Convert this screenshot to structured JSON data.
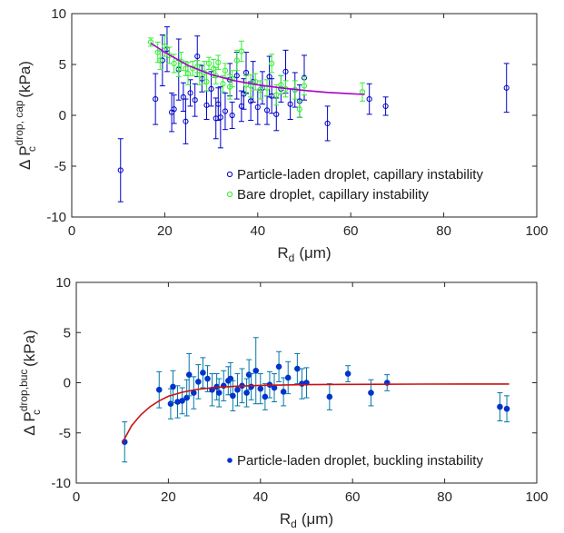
{
  "chart_data": [
    {
      "type": "scatter",
      "ylabel_main": "Δ P",
      "ylabel_sub": "c",
      "ylabel_sup": "drop, cap",
      "ylabel_unit": "(kPa)",
      "xlabel_main": "R",
      "xlabel_sub": "d",
      "xlabel_unit": "(μm)",
      "xlim": [
        0,
        100
      ],
      "ylim": [
        -10,
        10
      ],
      "xticks": [
        "0",
        "20",
        "40",
        "60",
        "80",
        "100"
      ],
      "yticks": [
        "10",
        "5",
        "0",
        "-5",
        "-10"
      ],
      "grid": false,
      "legend_position": "lower-right",
      "series": [
        {
          "name": "Particle-laden droplet, capillary instability",
          "marker": "open-circle",
          "color": "#0000cc",
          "points": [
            [
              10.5,
              -5.4,
              3.1
            ],
            [
              18,
              1.6,
              2.5
            ],
            [
              19.5,
              5.4,
              2.5
            ],
            [
              20.5,
              6.5,
              2.2
            ],
            [
              21.5,
              0.3,
              1.9
            ],
            [
              22,
              0.6,
              1.4
            ],
            [
              23,
              4.5,
              3.0
            ],
            [
              24,
              1.8,
              1.4
            ],
            [
              24.5,
              -0.6,
              2.2
            ],
            [
              25.5,
              2.2,
              1.3
            ],
            [
              26.5,
              1.5,
              1.6
            ],
            [
              27,
              5.8,
              2.0
            ],
            [
              28,
              3.6,
              1.3
            ],
            [
              29,
              1.0,
              1.4
            ],
            [
              30,
              2.6,
              1.7
            ],
            [
              31,
              -0.3,
              2.0
            ],
            [
              31.5,
              1.1,
              1.6
            ],
            [
              32,
              -0.2,
              3.0
            ],
            [
              33,
              0.4,
              1.8
            ],
            [
              34,
              3.5,
              1.6
            ],
            [
              34.5,
              0.0,
              1.3
            ],
            [
              35.5,
              3.9,
              2.3
            ],
            [
              36.5,
              0.9,
              1.5
            ],
            [
              37,
              2.1,
              1.5
            ],
            [
              37.5,
              4.2,
              2.0
            ],
            [
              38.5,
              1.4,
              1.9
            ],
            [
              39,
              3.3,
              2.0
            ],
            [
              40,
              0.8,
              1.7
            ],
            [
              41,
              2.7,
              1.6
            ],
            [
              42,
              0.5,
              1.4
            ],
            [
              42.5,
              3.8,
              2.0
            ],
            [
              43,
              1.9,
              1.7
            ],
            [
              44,
              0.1,
              1.6
            ],
            [
              45,
              2.6,
              1.3
            ],
            [
              46,
              4.3,
              2.1
            ],
            [
              47,
              1.1,
              1.5
            ],
            [
              48,
              2.5,
              1.7
            ],
            [
              49,
              1.4,
              1.6
            ],
            [
              50,
              3.7,
              2.2
            ],
            [
              55,
              -0.8,
              1.7
            ],
            [
              64,
              1.6,
              1.5
            ],
            [
              67.5,
              0.9,
              0.9
            ],
            [
              93.5,
              2.7,
              2.4
            ]
          ]
        },
        {
          "name": "Bare droplet, capillary instability",
          "marker": "open-circle",
          "color": "#33ee33",
          "points": [
            [
              17,
              7.2,
              0.4
            ],
            [
              18.5,
              6.2,
              1.0
            ],
            [
              19,
              5.4,
              0.9
            ],
            [
              20,
              6.8,
              1.0
            ],
            [
              21,
              5.9,
              0.8
            ],
            [
              22,
              5.1,
              0.9
            ],
            [
              23,
              4.6,
              0.8
            ],
            [
              23.5,
              5.3,
              0.9
            ],
            [
              24.5,
              4.6,
              0.7
            ],
            [
              25,
              4.1,
              1.1
            ],
            [
              26,
              4.6,
              0.7
            ],
            [
              27,
              4.8,
              0.6
            ],
            [
              27.5,
              4.0,
              1.0
            ],
            [
              28.5,
              4.2,
              1.1
            ],
            [
              29,
              3.3,
              0.9
            ],
            [
              29.5,
              5.1,
              0.6
            ],
            [
              30.5,
              4.6,
              0.9
            ],
            [
              31,
              3.9,
              0.8
            ],
            [
              31.5,
              5.2,
              0.7
            ],
            [
              32.5,
              3.1,
              0.8
            ],
            [
              33,
              4.4,
              0.7
            ],
            [
              34,
              2.8,
              1.2
            ],
            [
              34.5,
              3.6,
              0.8
            ],
            [
              35.5,
              5.4,
              1.0
            ],
            [
              36.5,
              6.3,
              1.0
            ],
            [
              37.5,
              3.0,
              0.9
            ],
            [
              38.5,
              2.9,
              1.1
            ],
            [
              39.5,
              3.3,
              0.8
            ],
            [
              40.5,
              2.5,
              0.9
            ],
            [
              42,
              2.7,
              0.8
            ],
            [
              43,
              5.1,
              0.9
            ],
            [
              44,
              2.0,
              1.0
            ],
            [
              45,
              3.0,
              0.9
            ],
            [
              46,
              2.6,
              0.8
            ],
            [
              48,
              2.5,
              0.9
            ],
            [
              49,
              0.6,
              0.8
            ],
            [
              50,
              2.9,
              0.9
            ],
            [
              62.5,
              2.3,
              0.9
            ]
          ]
        }
      ],
      "fit": {
        "color": "#aa00cc",
        "x": [
          17,
          63
        ],
        "y_at": [
          [
            17,
            7.1
          ],
          [
            20,
            6.2
          ],
          [
            25,
            4.9
          ],
          [
            30,
            4.0
          ],
          [
            35,
            3.4
          ],
          [
            40,
            3.0
          ],
          [
            45,
            2.7
          ],
          [
            50,
            2.45
          ],
          [
            55,
            2.25
          ],
          [
            63,
            2.05
          ]
        ]
      }
    },
    {
      "type": "scatter",
      "ylabel_main": "Δ P",
      "ylabel_sub": "c",
      "ylabel_sup": "drop,buc",
      "ylabel_unit": "(kPa)",
      "xlabel_main": "R",
      "xlabel_sub": "d",
      "xlabel_unit": "(μm)",
      "xlim": [
        0,
        100
      ],
      "ylim": [
        -10,
        10
      ],
      "xticks": [
        "0",
        "20",
        "40",
        "60",
        "80",
        "100"
      ],
      "yticks": [
        "10",
        "5",
        "0",
        "-5",
        "-10"
      ],
      "grid": false,
      "legend_position": "lower-right",
      "series": [
        {
          "name": "Particle-laden droplet, buckling instability",
          "marker": "filled-circle",
          "color": "#0033cc",
          "errcolor": "#0077aa",
          "points": [
            [
              10.5,
              -5.9,
              2.0
            ],
            [
              18,
              -0.7,
              1.8
            ],
            [
              20.5,
              -2.1,
              1.5
            ],
            [
              21,
              -0.4,
              1.6
            ],
            [
              22,
              -1.9,
              1.6
            ],
            [
              23,
              -1.8,
              1.3
            ],
            [
              24,
              -1.5,
              1.8
            ],
            [
              24.5,
              0.8,
              2.1
            ],
            [
              25.5,
              -1.0,
              1.6
            ],
            [
              26.5,
              0.1,
              1.7
            ],
            [
              27.5,
              1.0,
              1.5
            ],
            [
              28.5,
              0.4,
              1.3
            ],
            [
              29.5,
              -0.7,
              1.6
            ],
            [
              30.5,
              -0.4,
              1.3
            ],
            [
              31,
              -1.0,
              1.4
            ],
            [
              32,
              -0.3,
              1.5
            ],
            [
              33,
              0.2,
              1.4
            ],
            [
              33.5,
              0.4,
              1.6
            ],
            [
              34,
              -1.3,
              1.5
            ],
            [
              35,
              -0.7,
              1.6
            ],
            [
              36,
              -0.3,
              1.7
            ],
            [
              37,
              -1.0,
              1.4
            ],
            [
              37.5,
              0.8,
              1.5
            ],
            [
              38,
              -0.4,
              1.3
            ],
            [
              39,
              1.2,
              3.3
            ],
            [
              40,
              -0.6,
              1.5
            ],
            [
              41,
              -1.4,
              1.3
            ],
            [
              42,
              -0.2,
              1.3
            ],
            [
              43,
              -0.5,
              1.4
            ],
            [
              44,
              1.6,
              1.5
            ],
            [
              45,
              -0.9,
              1.4
            ],
            [
              46,
              0.5,
              1.6
            ],
            [
              48,
              1.4,
              1.5
            ],
            [
              49,
              -0.1,
              1.5
            ],
            [
              50,
              0.0,
              1.5
            ],
            [
              55,
              -1.4,
              1.3
            ],
            [
              59,
              0.9,
              0.8
            ],
            [
              64,
              -1.0,
              1.3
            ],
            [
              67.5,
              0.0,
              0.8
            ],
            [
              92,
              -2.4,
              1.4
            ],
            [
              93.5,
              -2.6,
              1.3
            ]
          ]
        }
      ],
      "fit": {
        "color": "#cc1111",
        "y_at": [
          [
            10,
            -6.0
          ],
          [
            12,
            -4.3
          ],
          [
            14,
            -3.2
          ],
          [
            16,
            -2.4
          ],
          [
            18,
            -1.8
          ],
          [
            20,
            -1.35
          ],
          [
            23,
            -0.95
          ],
          [
            26,
            -0.68
          ],
          [
            30,
            -0.48
          ],
          [
            35,
            -0.34
          ],
          [
            40,
            -0.26
          ],
          [
            50,
            -0.19
          ],
          [
            60,
            -0.16
          ],
          [
            75,
            -0.14
          ],
          [
            94,
            -0.13
          ]
        ]
      }
    }
  ]
}
